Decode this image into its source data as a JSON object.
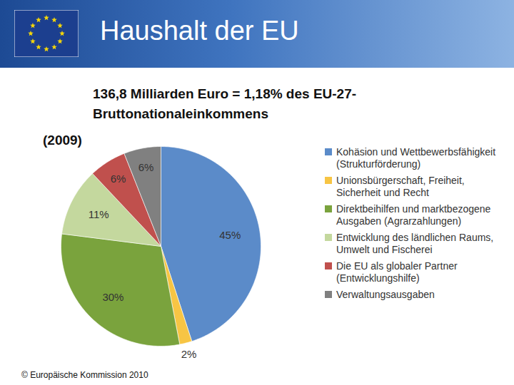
{
  "chart_data": {
    "type": "pie",
    "title": "Haushalt der EU",
    "subtitle": "136,8 Milliarden Euro = 1,18% des EU-27-Bruttonationaleinkommens",
    "annotations": [
      "(2009)"
    ],
    "caption": "© Europäische Kommission 2010",
    "categories": [
      "Kohäsion und Wettbewerbsfähigkeit (Strukturförderung)",
      "Unionsbürgerschaft, Freiheit, Sicherheit und Recht",
      "Direktbeihilfen und marktbezogene Ausgaben (Agrarzahlungen)",
      "Entwicklung des ländlichen Raums, Umwelt und Fischerei",
      "Die EU als globaler Partner (Entwicklungshilfe)",
      "Verwaltungsausgaben"
    ],
    "values": [
      45,
      2,
      30,
      11,
      6,
      6
    ],
    "value_labels": [
      "45%",
      "2%",
      "30%",
      "11%",
      "6%",
      "6%"
    ],
    "colors": [
      "#5b8bc9",
      "#f7c544",
      "#7aa33d",
      "#c4d89e",
      "#c0504d",
      "#808080"
    ],
    "data_labels": true,
    "legend": "right"
  }
}
